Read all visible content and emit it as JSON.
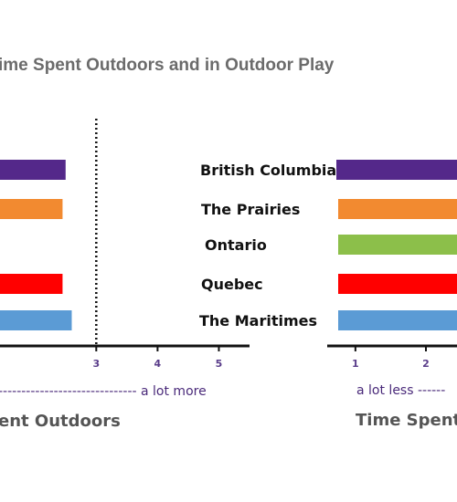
{
  "title": "ime Spent Outdoors and in Outdoor Play",
  "colors": {
    "axis": "#111111",
    "tick_text": "#5a3d8a",
    "annotation": "#4a2a7a",
    "british_columbia": "#54288a",
    "prairies": "#f28a30",
    "ontario": "#8cbf4a",
    "quebec": "#ff0000",
    "maritimes": "#5b9bd5"
  },
  "chart_data": [
    {
      "type": "bar",
      "orientation": "horizontal",
      "title": "",
      "categories": [
        "British Columbia",
        "The Prairies",
        "Ontario",
        "Quebec",
        "The Maritimes"
      ],
      "values": [
        2.5,
        2.45,
        null,
        2.45,
        2.6
      ],
      "xlim": [
        1.4,
        5.5
      ],
      "xticks": [
        "3",
        "4",
        "5"
      ],
      "reference_line": 3,
      "annotation_right": "------------------------------ a lot more",
      "xlabel": "ent Outdoors"
    },
    {
      "type": "bar",
      "orientation": "horizontal",
      "title": "",
      "categories": [
        "British Columbia",
        "The Prairies",
        "Ontario",
        "Quebec",
        "The Maritimes"
      ],
      "category_labels": [
        "British Columbia",
        "The Prairies",
        "Ontario",
        "Quebec",
        "The Maritimes"
      ],
      "values": [
        5,
        5,
        5,
        5,
        5
      ],
      "xlim": [
        0.6,
        2.7
      ],
      "xticks": [
        "1",
        "2"
      ],
      "annotation_left": "a lot less ------",
      "xlabel": "Time Spent"
    }
  ]
}
